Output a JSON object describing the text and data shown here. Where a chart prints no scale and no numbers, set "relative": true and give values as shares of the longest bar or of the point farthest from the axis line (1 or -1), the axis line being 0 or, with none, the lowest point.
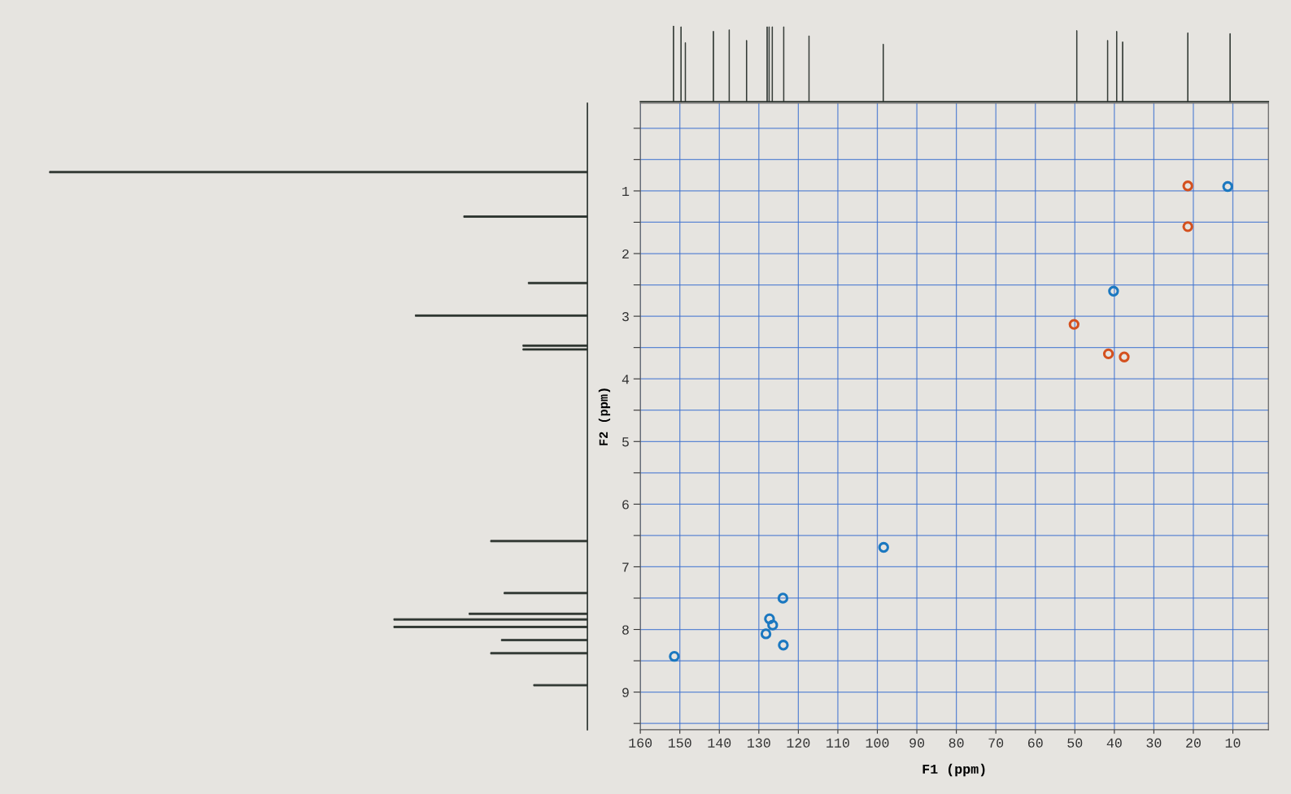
{
  "chart_data": [
    {
      "type": "bar",
      "relative": true,
      "tick_labels": false,
      "xlim": [
        160,
        1
      ],
      "x": [
        151.6,
        149.7,
        148.6,
        141.5,
        137.5,
        133.1,
        127.9,
        127.4,
        126.6,
        123.7,
        117.3,
        98.5,
        49.5,
        41.7,
        39.4,
        37.9,
        21.4,
        10.7
      ],
      "series": [
        {
          "color": "#2b332e",
          "values": [
            1,
            0.99,
            0.78,
            0.93,
            0.95,
            0.81,
            0.99,
            0.99,
            0.99,
            0.99,
            0.87,
            0.76,
            0.94,
            0.81,
            0.93,
            0.79,
            0.91,
            0.9
          ]
        }
      ]
    },
    {
      "type": "bar",
      "orientation": "horizontal",
      "relative": true,
      "tick_labels": false,
      "ylim": [
        9.6,
        -0.4
      ],
      "x": [
        0.7,
        1.41,
        2.47,
        2.99,
        3.47,
        3.53,
        6.59,
        7.42,
        7.75,
        7.84,
        7.96,
        8.17,
        8.38,
        8.89
      ],
      "series": [
        {
          "color": "#2b332e",
          "values": [
            1,
            0.23,
            0.11,
            0.32,
            0.12,
            0.12,
            0.18,
            0.155,
            0.22,
            0.36,
            0.36,
            0.16,
            0.18,
            0.1
          ]
        }
      ]
    },
    {
      "type": "scatter",
      "xlabel": "F1 (ppm)",
      "ylabel": "F2 (ppm)",
      "xlim": [
        160,
        1
      ],
      "ylim": [
        9.6,
        -0.4
      ],
      "xticks": [
        160,
        150,
        140,
        130,
        120,
        110,
        100,
        90,
        80,
        70,
        60,
        50,
        40,
        30,
        20,
        10
      ],
      "yticks": [
        {
          "value": 0,
          "label": null
        },
        {
          "value": 0.5,
          "label": null
        },
        1,
        {
          "value": 1.5,
          "label": null
        },
        2,
        {
          "value": 2.5,
          "label": null
        },
        3,
        {
          "value": 3.5,
          "label": null
        },
        4,
        {
          "value": 4.5,
          "label": null
        },
        5,
        {
          "value": 5.5,
          "label": null
        },
        6,
        {
          "value": 6.5,
          "label": null
        },
        7,
        {
          "value": 7.5,
          "label": null
        },
        8,
        {
          "value": 8.5,
          "label": null
        },
        9,
        {
          "value": 9.5,
          "label": null
        }
      ],
      "grid": true,
      "marker": "circle",
      "series": [
        {
          "color": "#1b78c0",
          "x": [
            11.3,
            40.2,
            98.4,
            123.9,
            127.3,
            126.5,
            128.2,
            123.8,
            151.4
          ],
          "values": [
            0.93,
            2.6,
            6.69,
            7.5,
            7.83,
            7.93,
            8.07,
            8.25,
            8.43
          ]
        },
        {
          "color": "#d4501e",
          "x": [
            21.4,
            21.4,
            50.2,
            41.5,
            37.5
          ],
          "values": [
            0.92,
            1.57,
            3.13,
            3.6,
            3.65
          ]
        }
      ]
    }
  ]
}
